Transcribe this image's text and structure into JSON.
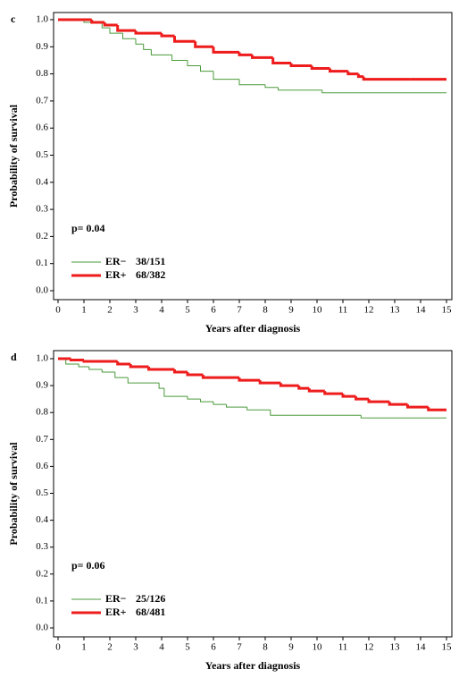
{
  "chart_data": [
    {
      "type": "line",
      "step": true,
      "panel_label": "c",
      "xlabel": "Years after diagnosis",
      "ylabel": "Probability of survival",
      "annotation": "p= 0.04",
      "xlim": [
        0,
        15
      ],
      "ylim": [
        0,
        1
      ],
      "xticks": [
        0,
        1,
        2,
        3,
        4,
        5,
        6,
        7,
        8,
        9,
        10,
        11,
        12,
        13,
        14,
        15
      ],
      "yticks": [
        {
          "value": 0,
          "label": "0.0"
        },
        0.1,
        0.2,
        0.3,
        0.4,
        0.5,
        0.6,
        0.7,
        0.8,
        0.9,
        {
          "value": 1,
          "label": "1.0"
        }
      ],
      "series": [
        {
          "name": "ER−",
          "count_label": "38/151",
          "color": "#4a9a3a",
          "width": 1,
          "x": [
            0,
            1,
            1.7,
            2,
            2.5,
            3,
            3.3,
            3.6,
            4.4,
            5,
            5.5,
            6,
            7,
            8,
            8.5,
            10.2
          ],
          "values": [
            1.0,
            0.99,
            0.97,
            0.95,
            0.93,
            0.91,
            0.89,
            0.87,
            0.85,
            0.83,
            0.81,
            0.78,
            0.76,
            0.75,
            0.74,
            0.73
          ]
        },
        {
          "name": "ER+",
          "count_label": "68/382",
          "color": "#ee1c1c",
          "width": 3,
          "x": [
            0,
            1.3,
            1.8,
            2.3,
            3,
            4,
            4.5,
            5.3,
            6,
            7,
            7.5,
            8.3,
            9,
            9.8,
            10.5,
            11.2,
            11.6,
            11.8,
            13.6
          ],
          "values": [
            1.0,
            0.99,
            0.98,
            0.96,
            0.95,
            0.94,
            0.92,
            0.9,
            0.88,
            0.87,
            0.86,
            0.84,
            0.83,
            0.82,
            0.81,
            0.8,
            0.79,
            0.78,
            0.78
          ]
        }
      ]
    },
    {
      "type": "line",
      "step": true,
      "panel_label": "d",
      "xlabel": "Years after diagnosis",
      "ylabel": "Probability of survival",
      "annotation": "p= 0.06",
      "xlim": [
        0,
        15
      ],
      "ylim": [
        0,
        1
      ],
      "xticks": [
        0,
        1,
        2,
        3,
        4,
        5,
        6,
        7,
        8,
        9,
        10,
        11,
        12,
        13,
        14,
        15
      ],
      "yticks": [
        {
          "value": 0,
          "label": "0.0"
        },
        0.1,
        0.2,
        0.3,
        0.4,
        0.5,
        0.6,
        0.7,
        0.8,
        0.9,
        {
          "value": 1,
          "label": "1.0"
        }
      ],
      "series": [
        {
          "name": "ER−",
          "count_label": "25/126",
          "color": "#4a9a3a",
          "width": 1,
          "x": [
            0,
            0.3,
            0.8,
            1.2,
            1.7,
            2.2,
            2.7,
            3.9,
            4.1,
            5,
            5.5,
            6,
            6.5,
            7.3,
            8.2,
            11.7
          ],
          "values": [
            1.0,
            0.98,
            0.97,
            0.96,
            0.95,
            0.93,
            0.91,
            0.89,
            0.86,
            0.85,
            0.84,
            0.83,
            0.82,
            0.81,
            0.79,
            0.78
          ]
        },
        {
          "name": "ER+",
          "count_label": "68/481",
          "color": "#ee1c1c",
          "width": 3,
          "x": [
            0,
            0.5,
            1,
            2.3,
            2.8,
            3.5,
            4.5,
            5,
            5.6,
            7,
            7.8,
            8.6,
            9.3,
            9.7,
            10.3,
            11,
            11.5,
            12,
            12.8,
            13.5,
            14.3
          ],
          "values": [
            1.0,
            0.995,
            0.99,
            0.98,
            0.97,
            0.96,
            0.95,
            0.94,
            0.93,
            0.92,
            0.91,
            0.9,
            0.89,
            0.88,
            0.87,
            0.86,
            0.85,
            0.84,
            0.83,
            0.82,
            0.81
          ]
        }
      ]
    }
  ]
}
